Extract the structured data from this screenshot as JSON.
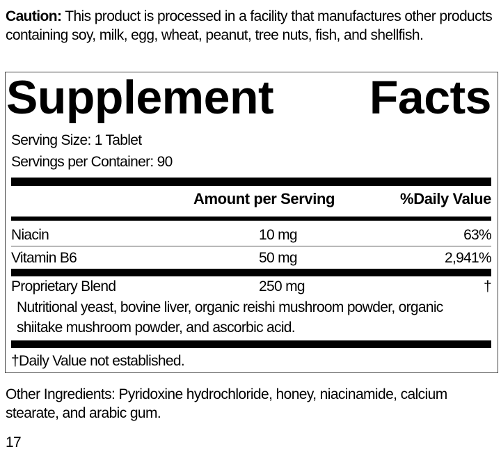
{
  "caution": {
    "label": "Caution:",
    "text": " This product is processed in a facility that manufactures other products containing soy, milk, egg, wheat, peanut, tree nuts, fish, and shellfish."
  },
  "facts": {
    "title_left": "Supplement",
    "title_right": "Facts",
    "serving_size": "Serving Size: 1 Tablet",
    "servings_per_container": "Servings per Container: 90",
    "header_amount": "Amount per Serving",
    "header_dv": "%Daily Value",
    "rows": [
      {
        "name": "Niacin",
        "amount": "10 mg",
        "dv": "63%"
      },
      {
        "name": "Vitamin B6",
        "amount": "50 mg",
        "dv": "2,941%"
      },
      {
        "name": "Proprietary Blend",
        "amount": "250 mg",
        "dv": "†"
      }
    ],
    "blend_line1": "Nutritional yeast, bovine liver, organic reishi mushroom powder, organic",
    "blend_line2": "shiitake mushroom powder, and ascorbic acid.",
    "footnote": "†Daily Value not established."
  },
  "other_ingredients": "Other Ingredients: Pyridoxine hydrochloride, honey, niacinamide, calcium stearate, and arabic gum.",
  "code": "17"
}
